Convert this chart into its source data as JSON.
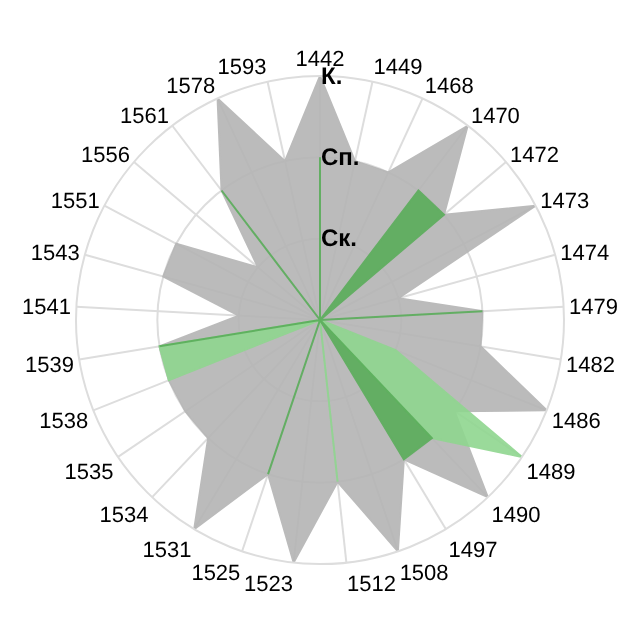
{
  "chart_data": {
    "type": "radar",
    "categories": [
      "1442",
      "1449",
      "1468",
      "1470",
      "1472",
      "1473",
      "1474",
      "1479",
      "1482",
      "1486",
      "1489",
      "1490",
      "1497",
      "1508",
      "1512",
      "1523",
      "1525",
      "1531",
      "1534",
      "1535",
      "1538",
      "1539",
      "1541",
      "1543",
      "1551",
      "1556",
      "1561",
      "1578",
      "1593"
    ],
    "series": [
      {
        "color": "#b4b4b4",
        "values": [
          3,
          2,
          2,
          3,
          2,
          3,
          1,
          2,
          2,
          3,
          2,
          3,
          2,
          3,
          2,
          3,
          2,
          3,
          2,
          2,
          2,
          2,
          1,
          2,
          2,
          1,
          2,
          3,
          2
        ]
      },
      {
        "color": "#8fd68f",
        "values": [
          0,
          0,
          0,
          0,
          0,
          0,
          0,
          0,
          0,
          1,
          3,
          2,
          0,
          0,
          2,
          0,
          0,
          0,
          0,
          0,
          2,
          2,
          0,
          0,
          0,
          0,
          0,
          0,
          0
        ]
      },
      {
        "color": "#5aad5a",
        "values": [
          2,
          0,
          0,
          2,
          2,
          0,
          0,
          2,
          0,
          0,
          0,
          2,
          2,
          0,
          0,
          0,
          2,
          0,
          0,
          0,
          0,
          2,
          0,
          0,
          0,
          0,
          2,
          0,
          0
        ]
      }
    ],
    "ylim": [
      0,
      3
    ],
    "yticks": [
      {
        "value": 1,
        "label": "Ск."
      },
      {
        "value": 2,
        "label": "Сп."
      },
      {
        "value": 3,
        "label": "К."
      }
    ],
    "grid": true,
    "marker": "none"
  }
}
